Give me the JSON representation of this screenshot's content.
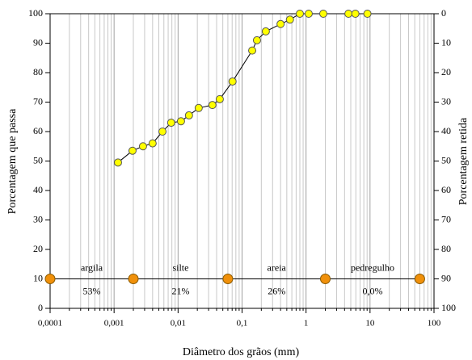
{
  "chart_data": {
    "type": "line",
    "xlabel": "Diâmetro dos grãos (mm)",
    "ylabel": "Porcentagem que passa",
    "y2label": "Porcentagem retida",
    "xscale": "log",
    "xlim": [
      0.0001,
      100
    ],
    "xticks": [
      {
        "value": 0.0001,
        "label": "0,0001"
      },
      {
        "value": 0.001,
        "label": "0,001"
      },
      {
        "value": 0.01,
        "label": "0,01"
      },
      {
        "value": 0.1,
        "label": "0,1"
      },
      1,
      10,
      100
    ],
    "ylim": [
      0,
      100
    ],
    "yticks": [
      0,
      10,
      20,
      30,
      40,
      50,
      60,
      70,
      80,
      90,
      100
    ],
    "y2lim": [
      100,
      0
    ],
    "y2ticks": [
      0,
      10,
      20,
      30,
      40,
      50,
      60,
      70,
      80,
      90,
      100
    ],
    "grid": true,
    "minor_grid": true,
    "series": [
      {
        "color": "#ffff00",
        "x": [
          0.00115,
          0.00194,
          0.00283,
          0.004,
          0.0057,
          0.0078,
          0.0111,
          0.0148,
          0.021,
          0.0344,
          0.0448,
          0.071,
          0.144,
          0.171,
          0.235,
          0.4,
          0.56,
          0.8,
          1.1,
          1.86,
          4.6,
          5.9,
          9.1
        ],
        "values": [
          49.5,
          53.5,
          55,
          56,
          60,
          63,
          63.5,
          65.5,
          68,
          69,
          71,
          77,
          87.5,
          91,
          94,
          96.5,
          98,
          100,
          100,
          100,
          100,
          100,
          100
        ]
      }
    ],
    "fractions": {
      "color": "#f0900a",
      "level": 10,
      "bounds": [
        0.0001,
        0.002,
        0.06,
        2,
        60
      ],
      "names": [
        "argila",
        "silte",
        "areia",
        "pedregulho"
      ],
      "values": [
        53,
        21,
        26,
        0
      ],
      "value_labels": [
        "53%",
        "21%",
        "26%",
        "0,0%"
      ]
    }
  }
}
